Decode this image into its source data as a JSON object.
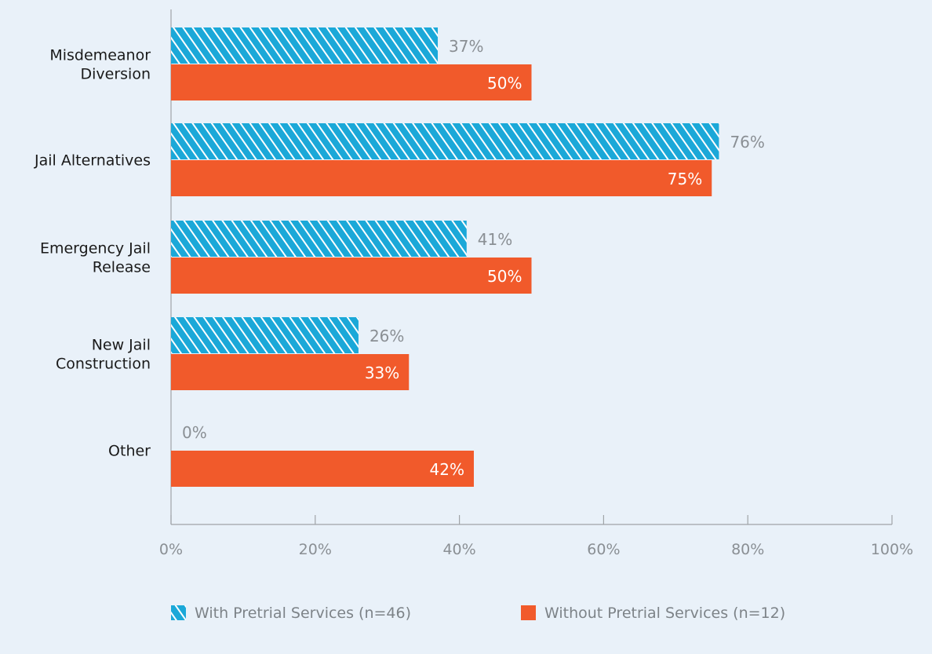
{
  "chart_data": {
    "type": "bar",
    "orientation": "horizontal",
    "categories": [
      [
        "Misdemeanor",
        "Diversion"
      ],
      [
        "Jail Alternatives"
      ],
      [
        "Emergency Jail",
        "Release"
      ],
      [
        "New Jail",
        "Construction"
      ],
      [
        "Other"
      ]
    ],
    "series": [
      {
        "name": "With Pretrial Services (n=46)",
        "values": [
          37,
          76,
          41,
          26,
          0
        ],
        "labels": [
          "37%",
          "76%",
          "41%",
          "26%",
          "0%"
        ],
        "color": "#1ba8d8",
        "pattern": "diagonal-stripes"
      },
      {
        "name": "Without Pretrial Services (n=12)",
        "values": [
          50,
          75,
          50,
          33,
          42
        ],
        "labels": [
          "50%",
          "75%",
          "50%",
          "33%",
          "42%"
        ],
        "color": "#f15a2b",
        "pattern": "solid"
      }
    ],
    "xlim": [
      0,
      100
    ],
    "xticks": [
      "0%",
      "20%",
      "40%",
      "60%",
      "80%",
      "100%"
    ],
    "grid": false,
    "legend_position": "bottom"
  }
}
